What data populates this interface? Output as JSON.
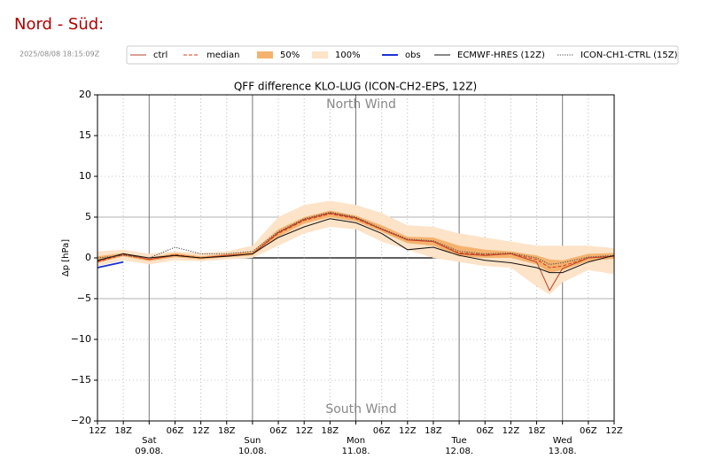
{
  "heading": "Nord - Süd:",
  "timestamp": "2025/08/08 18:15:09Z",
  "chart_data": {
    "type": "line",
    "title": "QFF difference KLO-LUG (ICON-CH2-EPS, 12Z)",
    "y_label": "Δp [hPa]",
    "annotations": [
      "North Wind",
      "South Wind"
    ],
    "x": [
      0,
      6,
      12,
      18,
      24,
      30,
      36,
      42,
      48,
      54,
      60,
      66,
      72,
      78,
      84,
      90,
      96,
      102,
      105,
      108,
      114,
      120
    ],
    "xlim": [
      0,
      120
    ],
    "xticks": [
      {
        "value": 0,
        "label": "12Z"
      },
      {
        "value": 6,
        "label": "18Z"
      },
      {
        "value": 18,
        "label": "06Z"
      },
      {
        "value": 24,
        "label": "12Z"
      },
      {
        "value": 30,
        "label": "18Z"
      },
      {
        "value": 42,
        "label": "06Z"
      },
      {
        "value": 48,
        "label": "12Z"
      },
      {
        "value": 54,
        "label": "18Z"
      },
      {
        "value": 66,
        "label": "06Z"
      },
      {
        "value": 72,
        "label": "12Z"
      },
      {
        "value": 78,
        "label": "18Z"
      },
      {
        "value": 90,
        "label": "06Z"
      },
      {
        "value": 96,
        "label": "12Z"
      },
      {
        "value": 102,
        "label": "18Z"
      },
      {
        "value": 114,
        "label": "06Z"
      },
      {
        "value": 120,
        "label": "12Z"
      }
    ],
    "day_ticks": [
      {
        "value": 12,
        "label": "Sat",
        "date": "09.08."
      },
      {
        "value": 36,
        "label": "Sun",
        "date": "10.08."
      },
      {
        "value": 60,
        "label": "Mon",
        "date": "11.08."
      },
      {
        "value": 84,
        "label": "Tue",
        "date": "12.08."
      },
      {
        "value": 108,
        "label": "Wed",
        "date": "13.08."
      }
    ],
    "ylim": [
      -20,
      20
    ],
    "yticks": [
      {
        "value": -20,
        "label": "−20"
      },
      {
        "value": -15,
        "label": "−15"
      },
      {
        "value": -10,
        "label": "−10"
      },
      {
        "value": -5,
        "label": "−5"
      },
      0,
      5,
      10,
      15,
      20
    ],
    "grid": true,
    "series": [
      {
        "name": "ctrl",
        "kind": "line",
        "color": "#b5402a",
        "dash": "solid",
        "values": [
          -0.4,
          0.5,
          -0.2,
          0.3,
          0.0,
          0.3,
          0.5,
          3.1,
          4.7,
          5.5,
          4.9,
          3.5,
          2.2,
          2.0,
          0.5,
          0.3,
          0.5,
          -0.5,
          -4.0,
          -1.3,
          0.0,
          0.2
        ]
      },
      {
        "name": "median",
        "kind": "line",
        "color": "#d93a1a",
        "dash": "dashed",
        "values": [
          -0.5,
          0.4,
          -0.2,
          0.4,
          0.0,
          0.3,
          0.5,
          3.0,
          4.6,
          5.4,
          4.8,
          3.5,
          2.2,
          2.0,
          0.6,
          0.4,
          0.5,
          -0.2,
          -1.2,
          -1.0,
          0.0,
          0.2
        ]
      },
      {
        "name": "50%",
        "kind": "band",
        "color": "#f5b26e",
        "low": [
          -0.6,
          0.2,
          -0.4,
          0.1,
          -0.2,
          0.1,
          0.3,
          2.6,
          4.2,
          5.0,
          4.5,
          3.2,
          1.8,
          1.5,
          0.2,
          0.0,
          0.0,
          -0.8,
          -1.8,
          -1.5,
          -0.4,
          -0.1
        ],
        "high": [
          0.2,
          0.6,
          0.0,
          0.6,
          0.2,
          0.5,
          0.8,
          3.5,
          5.0,
          5.8,
          5.2,
          4.0,
          2.6,
          2.5,
          1.5,
          1.0,
          0.8,
          0.3,
          -0.2,
          -0.3,
          0.5,
          0.6
        ]
      },
      {
        "name": "100%",
        "kind": "band",
        "color": "#fde3c8",
        "low": [
          -1.0,
          -0.3,
          -0.8,
          -0.3,
          -0.4,
          -0.2,
          0.0,
          1.5,
          3.0,
          3.8,
          3.5,
          2.0,
          1.0,
          0.0,
          -0.5,
          -1.0,
          -1.2,
          -3.5,
          -4.5,
          -3.0,
          -1.5,
          -2.0
        ],
        "high": [
          0.8,
          1.0,
          0.5,
          0.8,
          0.6,
          0.8,
          1.5,
          5.0,
          6.5,
          7.0,
          6.5,
          5.5,
          4.0,
          3.8,
          3.0,
          2.5,
          2.0,
          1.5,
          1.5,
          1.5,
          1.5,
          1.2
        ]
      },
      {
        "name": "obs",
        "kind": "line",
        "color": "#1c32d6",
        "dash": "solid",
        "values": [
          -1.2,
          -0.5,
          null,
          null,
          null,
          null,
          null,
          null,
          null,
          null,
          null,
          null,
          null,
          null,
          null,
          null,
          null,
          null,
          null,
          null,
          null,
          null
        ]
      },
      {
        "name": "ECMWF-HRES (12Z)",
        "kind": "line",
        "color": "#111111",
        "dash": "solid",
        "values": [
          -0.3,
          0.5,
          0.0,
          0.3,
          0.0,
          0.2,
          0.5,
          2.5,
          3.8,
          4.8,
          4.3,
          3.0,
          1.0,
          1.3,
          0.3,
          -0.3,
          -0.6,
          -1.2,
          -1.8,
          -1.8,
          -0.5,
          0.3
        ]
      },
      {
        "name": "ICON-CH1-CTRL (15Z)",
        "kind": "line",
        "color": "#444444",
        "dash": "dotted",
        "values": [
          0.0,
          0.3,
          0.0,
          1.3,
          0.5,
          0.5,
          0.8,
          3.2,
          4.8,
          5.6,
          5.0,
          3.6,
          2.3,
          2.1,
          0.8,
          0.5,
          0.6,
          0.0,
          -0.8,
          -0.6,
          0.1,
          0.3
        ]
      }
    ]
  }
}
